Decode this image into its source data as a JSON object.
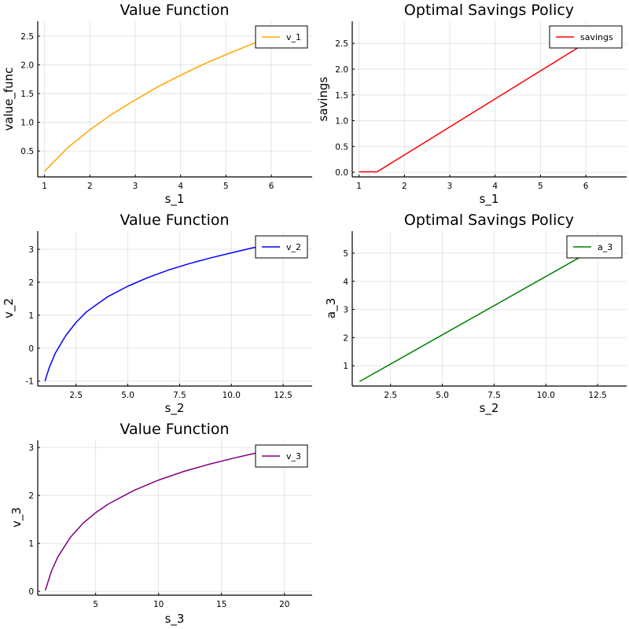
{
  "chart_data": [
    {
      "type": "line",
      "title": "Value Function",
      "xlabel": "s_1",
      "ylabel": "value_func",
      "xlim": [
        0.85,
        6.9
      ],
      "ylim": [
        0.05,
        2.76
      ],
      "xticks": [
        1,
        2,
        3,
        4,
        5,
        6
      ],
      "xtick_labels": [
        "1",
        "2",
        "3",
        "4",
        "5",
        "6"
      ],
      "yticks": [
        0.5,
        1.0,
        1.5,
        2.0,
        2.5
      ],
      "ytick_labels": [
        "0.5",
        "1.0",
        "1.5",
        "2.0",
        "2.5"
      ],
      "grid": true,
      "legend": "top-right",
      "series": [
        {
          "name": "v_1",
          "color": "#ffa500",
          "x": [
            1.0,
            1.5,
            2.0,
            2.5,
            3.0,
            3.5,
            4.0,
            4.5,
            5.0,
            5.5,
            6.0
          ],
          "y": [
            0.15,
            0.55,
            0.87,
            1.15,
            1.39,
            1.62,
            1.82,
            2.01,
            2.18,
            2.34,
            2.49
          ]
        }
      ]
    },
    {
      "type": "line",
      "title": "Optimal Savings Policy",
      "xlabel": "s_1",
      "ylabel": "savings",
      "xlim": [
        0.85,
        6.9
      ],
      "ylim": [
        -0.09,
        2.93
      ],
      "xticks": [
        1,
        2,
        3,
        4,
        5,
        6
      ],
      "xtick_labels": [
        "1",
        "2",
        "3",
        "4",
        "5",
        "6"
      ],
      "yticks": [
        0.0,
        0.5,
        1.0,
        1.5,
        2.0,
        2.5
      ],
      "ytick_labels": [
        "0.0",
        "0.5",
        "1.0",
        "1.5",
        "2.0",
        "2.5"
      ],
      "grid": true,
      "legend": "top-right",
      "series": [
        {
          "name": "savings",
          "color": "#ff0000",
          "x": [
            1.0,
            1.4,
            6.0
          ],
          "y": [
            0.01,
            0.01,
            2.51
          ]
        }
      ]
    },
    {
      "type": "line",
      "title": "Value Function",
      "xlabel": "s_2",
      "ylabel": "v_2",
      "xlim": [
        0.65,
        13.9
      ],
      "ylim": [
        -1.15,
        3.55
      ],
      "xticks": [
        2.5,
        5.0,
        7.5,
        10.0,
        12.5
      ],
      "xtick_labels": [
        "2.5",
        "5.0",
        "7.5",
        "10.0",
        "12.5"
      ],
      "yticks": [
        -1,
        0,
        1,
        2,
        3
      ],
      "ytick_labels": [
        "-1",
        "0",
        "1",
        "2",
        "3"
      ],
      "grid": true,
      "legend": "top-right",
      "series": [
        {
          "name": "v_2",
          "color": "#0000ff",
          "x": [
            1.0,
            1.2,
            1.5,
            2.0,
            2.5,
            3.0,
            4.0,
            5.0,
            6.0,
            7.0,
            8.0,
            9.0,
            10.0,
            11.0,
            12.0
          ],
          "y": [
            -1.0,
            -0.6,
            -0.15,
            0.38,
            0.78,
            1.1,
            1.55,
            1.88,
            2.15,
            2.38,
            2.57,
            2.74,
            2.89,
            3.04,
            3.15
          ]
        }
      ]
    },
    {
      "type": "line",
      "title": "Optimal Savings Policy",
      "xlabel": "s_2",
      "ylabel": "a_3",
      "xlim": [
        0.65,
        13.9
      ],
      "ylim": [
        0.28,
        5.78
      ],
      "xticks": [
        2.5,
        5.0,
        7.5,
        10.0,
        12.5
      ],
      "xtick_labels": [
        "2.5",
        "5.0",
        "7.5",
        "10.0",
        "12.5"
      ],
      "yticks": [
        1,
        2,
        3,
        4,
        5
      ],
      "ytick_labels": [
        "1",
        "2",
        "3",
        "4",
        "5"
      ],
      "grid": true,
      "legend": "top-right",
      "series": [
        {
          "name": "a_3",
          "color": "#008000",
          "x": [
            1.0,
            12.0
          ],
          "y": [
            0.44,
            5.0
          ]
        }
      ]
    },
    {
      "type": "line",
      "title": "Value Function",
      "xlabel": "s_3",
      "ylabel": "v_3",
      "xlim": [
        0.4,
        22.2
      ],
      "ylim": [
        -0.08,
        3.15
      ],
      "xticks": [
        5,
        10,
        15,
        20
      ],
      "xtick_labels": [
        "5",
        "10",
        "15",
        "20"
      ],
      "yticks": [
        0,
        1,
        2,
        3
      ],
      "ytick_labels": [
        "0",
        "1",
        "2",
        "3"
      ],
      "grid": true,
      "legend": "top-right",
      "series": [
        {
          "name": "v_3",
          "color": "#800080",
          "x": [
            1.0,
            1.5,
            2.0,
            3.0,
            4.0,
            5.0,
            6.0,
            8.0,
            10.0,
            12.0,
            14.0,
            16.0,
            18.0
          ],
          "y": [
            0.02,
            0.43,
            0.72,
            1.13,
            1.42,
            1.64,
            1.82,
            2.1,
            2.32,
            2.5,
            2.65,
            2.78,
            2.9
          ]
        }
      ]
    }
  ]
}
